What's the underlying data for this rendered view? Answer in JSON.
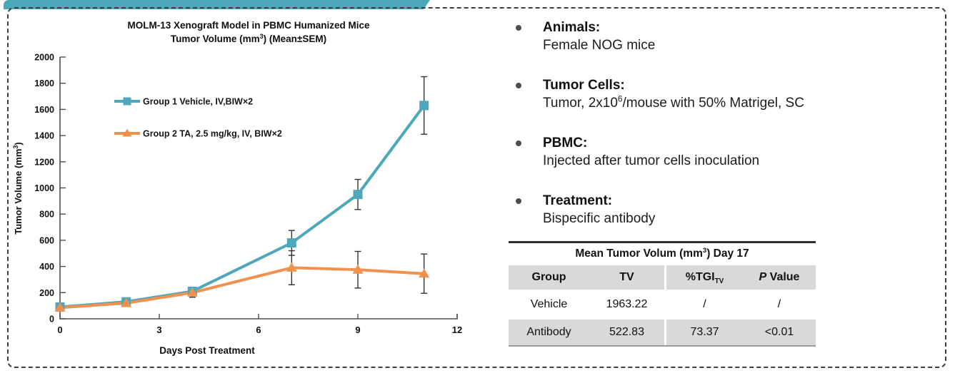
{
  "colors": {
    "accent_teal": "#4BA9BA",
    "series_vehicle": "#4DA8BC",
    "series_antibody": "#F0924E",
    "table_shade": "#d9d9d9",
    "error_bar": "#333333"
  },
  "chart_data": {
    "type": "line",
    "title_line1": "MOLM-13 Xenograft Model in PBMC Humanized Mice",
    "title_line2_parts": [
      "Tumor Volume (mm",
      "3",
      ") (Mean±SEM)"
    ],
    "xlabel": "Days Post Treatment",
    "ylabel_parts": [
      "Tumor Volume (mm",
      "3",
      ")"
    ],
    "xlim": [
      0,
      12
    ],
    "ylim": [
      0,
      2000
    ],
    "xticks": [
      0,
      3,
      6,
      9,
      12
    ],
    "yticks": [
      0,
      200,
      400,
      600,
      800,
      1000,
      1200,
      1400,
      1600,
      1800,
      2000
    ],
    "grid": false,
    "legend_position": "upper-left-inside",
    "x": [
      0,
      2,
      4,
      7,
      9,
      11
    ],
    "series": [
      {
        "name": "Group 1 Vehicle, IV,BIW×2",
        "color": "#4DA8BC",
        "marker": "square",
        "values": [
          90,
          130,
          210,
          580,
          950,
          1630
        ],
        "sem": [
          15,
          25,
          30,
          95,
          115,
          220
        ]
      },
      {
        "name": "Group 2 TA, 2.5 mg/kg, IV, BIW×2",
        "color": "#F0924E",
        "marker": "triangle",
        "values": [
          85,
          120,
          200,
          390,
          375,
          345
        ],
        "sem": [
          15,
          25,
          35,
          130,
          140,
          150
        ]
      }
    ]
  },
  "info_panel": {
    "bullets": [
      {
        "label": "Animals:",
        "text_parts": [
          "Female NOG mice",
          "",
          ""
        ]
      },
      {
        "label": "Tumor Cells:",
        "text_parts": [
          "Tumor, 2x10",
          "6",
          "/mouse with 50% Matrigel, SC"
        ]
      },
      {
        "label": "PBMC:",
        "text_parts": [
          "Injected after tumor cells inoculation",
          "",
          ""
        ]
      },
      {
        "label": "Treatment:",
        "text_parts": [
          "Bispecific antibody",
          "",
          ""
        ]
      }
    ]
  },
  "table": {
    "title_parts": [
      "Mean Tumor Volum (mm",
      "3",
      ") Day 17"
    ],
    "headers": [
      "Group",
      "TV",
      "%TGI",
      "P Value"
    ],
    "tgi_subscript": "TV",
    "p_label_italic": "P",
    "p_label_rest": " Value",
    "rows": [
      {
        "cells": [
          "Vehicle",
          "1963.22",
          "/",
          "/"
        ],
        "shaded": false
      },
      {
        "cells": [
          "Antibody",
          "522.83",
          "73.37",
          "<0.01"
        ],
        "shaded": true
      }
    ]
  }
}
